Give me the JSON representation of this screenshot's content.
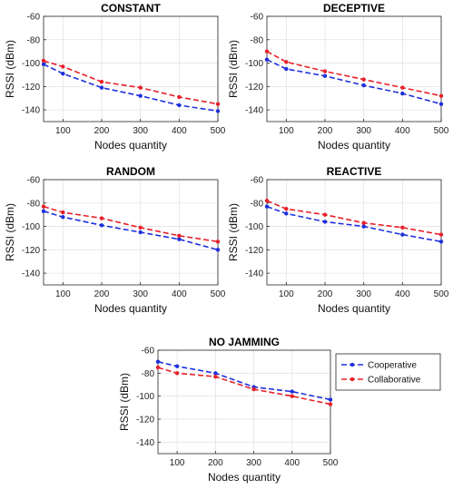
{
  "legend": {
    "entries": [
      {
        "name": "Cooperative",
        "color": "#1f2fdc"
      },
      {
        "name": "Collaborative",
        "color": "#e8202a"
      }
    ],
    "placement": "right of bottom chart"
  },
  "chart_data": [
    {
      "type": "line",
      "title": "CONSTANT",
      "xlabel": "Nodes quantity",
      "ylabel": "RSSI (dBm)",
      "x": [
        50,
        100,
        200,
        300,
        400,
        500
      ],
      "xticks": [
        100,
        200,
        300,
        400,
        500
      ],
      "xlim": [
        50,
        500
      ],
      "yticks": [
        -60,
        -80,
        -100,
        -120,
        -140
      ],
      "ylim": [
        -150,
        -60
      ],
      "grid": true,
      "series": [
        {
          "name": "Cooperative",
          "color": "#1f2fdc",
          "values": [
            -101,
            -109,
            -121,
            -128,
            -136,
            -141
          ]
        },
        {
          "name": "Collaborative",
          "color": "#e8202a",
          "values": [
            -98,
            -103,
            -116,
            -121,
            -129,
            -135
          ]
        }
      ]
    },
    {
      "type": "line",
      "title": "DECEPTIVE",
      "xlabel": "Nodes quantity",
      "ylabel": "RSSI (dBm)",
      "x": [
        50,
        100,
        200,
        300,
        400,
        500
      ],
      "xticks": [
        100,
        200,
        300,
        400,
        500
      ],
      "xlim": [
        50,
        500
      ],
      "yticks": [
        -60,
        -80,
        -100,
        -120,
        -140
      ],
      "ylim": [
        -150,
        -60
      ],
      "grid": true,
      "series": [
        {
          "name": "Cooperative",
          "color": "#1f2fdc",
          "values": [
            -97,
            -105,
            -111,
            -119,
            -126,
            -135
          ]
        },
        {
          "name": "Collaborative",
          "color": "#e8202a",
          "values": [
            -90,
            -99,
            -107,
            -114,
            -121,
            -128
          ]
        }
      ]
    },
    {
      "type": "line",
      "title": "RANDOM",
      "xlabel": "Nodes quantity",
      "ylabel": "RSSI (dBm)",
      "x": [
        50,
        100,
        200,
        300,
        400,
        500
      ],
      "xticks": [
        100,
        200,
        300,
        400,
        500
      ],
      "xlim": [
        50,
        500
      ],
      "yticks": [
        -60,
        -80,
        -100,
        -120,
        -140
      ],
      "ylim": [
        -150,
        -60
      ],
      "grid": true,
      "series": [
        {
          "name": "Cooperative",
          "color": "#1f2fdc",
          "values": [
            -87,
            -92,
            -99,
            -105,
            -111,
            -120
          ]
        },
        {
          "name": "Collaborative",
          "color": "#e8202a",
          "values": [
            -83,
            -88,
            -93,
            -101,
            -108,
            -113
          ]
        }
      ]
    },
    {
      "type": "line",
      "title": "REACTIVE",
      "xlabel": "Nodes quantity",
      "ylabel": "RSSI (dBm)",
      "x": [
        50,
        100,
        200,
        300,
        400,
        500
      ],
      "xticks": [
        100,
        200,
        300,
        400,
        500
      ],
      "xlim": [
        50,
        500
      ],
      "yticks": [
        -60,
        -80,
        -100,
        -120,
        -140
      ],
      "ylim": [
        -150,
        -60
      ],
      "grid": true,
      "series": [
        {
          "name": "Cooperative",
          "color": "#1f2fdc",
          "values": [
            -83,
            -89,
            -96,
            -100,
            -107,
            -113
          ]
        },
        {
          "name": "Collaborative",
          "color": "#e8202a",
          "values": [
            -78,
            -85,
            -90,
            -97,
            -101,
            -107
          ]
        }
      ]
    },
    {
      "type": "line",
      "title": "NO JAMMING",
      "xlabel": "Nodes quantity",
      "ylabel": "RSSI (dBm)",
      "x": [
        50,
        100,
        200,
        300,
        400,
        500
      ],
      "xticks": [
        100,
        200,
        300,
        400,
        500
      ],
      "xlim": [
        50,
        500
      ],
      "yticks": [
        -60,
        -80,
        -100,
        -120,
        -140
      ],
      "ylim": [
        -150,
        -60
      ],
      "grid": true,
      "series": [
        {
          "name": "Cooperative",
          "color": "#1f2fdc",
          "values": [
            -70,
            -74,
            -80,
            -92,
            -96,
            -103
          ]
        },
        {
          "name": "Collaborative",
          "color": "#e8202a",
          "values": [
            -75,
            -80,
            -83,
            -94,
            -100,
            -107
          ]
        }
      ]
    }
  ]
}
